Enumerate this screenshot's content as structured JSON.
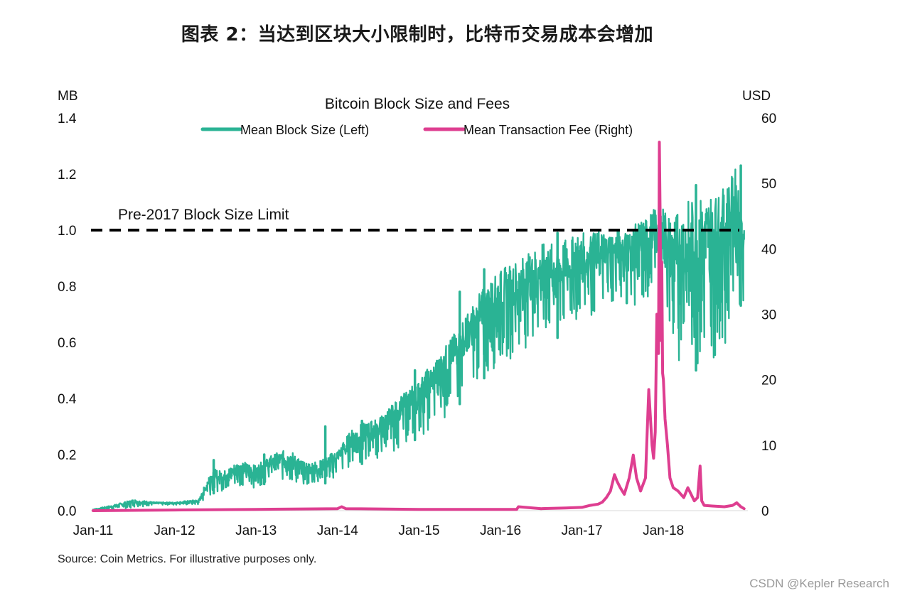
{
  "page": {
    "title": "图表 2：当达到区块大小限制时，比特币交易成本会增加",
    "source": "Source: Coin Metrics. For illustrative purposes only.",
    "watermark": "CSDN @Kepler Research"
  },
  "colors": {
    "block_size": "#2ab394",
    "fee": "#de3e90",
    "limit_line": "#000000"
  },
  "chart_data": {
    "type": "line",
    "title": "Bitcoin Block Size and Fees",
    "left_axis": {
      "unit_label": "MB",
      "range": [
        0.0,
        1.4
      ],
      "ticks": [
        "0.0",
        "0.2",
        "0.4",
        "0.6",
        "0.8",
        "1.0",
        "1.2",
        "1.4"
      ],
      "tick_values": [
        0.0,
        0.2,
        0.4,
        0.6,
        0.8,
        1.0,
        1.2,
        1.4
      ]
    },
    "right_axis": {
      "unit_label": "USD",
      "range": [
        0,
        60
      ],
      "ticks": [
        "0",
        "10",
        "20",
        "30",
        "40",
        "50",
        "60"
      ],
      "tick_values": [
        0,
        10,
        20,
        30,
        40,
        50,
        60
      ]
    },
    "x_axis": {
      "range": [
        2011.0,
        2019.0
      ],
      "ticks": [
        "Jan-11",
        "Jan-12",
        "Jan-13",
        "Jan-14",
        "Jan-15",
        "Jan-16",
        "Jan-17",
        "Jan-18"
      ],
      "tick_values": [
        2011,
        2012,
        2013,
        2014,
        2015,
        2016,
        2017,
        2018
      ]
    },
    "legend": {
      "position": "top-center",
      "entries": [
        "Mean Block Size (Left)",
        "Mean Transaction Fee (Right)"
      ]
    },
    "reference_line": {
      "label": "Pre-2017 Block Size Limit",
      "value": 1.0,
      "axis": "left"
    },
    "series": [
      {
        "name": "Mean Block Size (Left)",
        "axis": "left",
        "style": "band",
        "x": [
          2011.0,
          2011.25,
          2011.5,
          2011.75,
          2012.0,
          2012.3,
          2012.45,
          2012.6,
          2012.8,
          2013.0,
          2013.2,
          2013.4,
          2013.6,
          2013.8,
          2014.0,
          2014.2,
          2014.5,
          2014.75,
          2015.0,
          2015.25,
          2015.5,
          2015.75,
          2016.0,
          2016.25,
          2016.5,
          2016.75,
          2017.0,
          2017.25,
          2017.5,
          2017.65,
          2017.8,
          2017.9,
          2018.0,
          2018.1,
          2018.25,
          2018.5,
          2018.75,
          2018.9,
          2018.99
        ],
        "low": [
          0.0,
          0.005,
          0.01,
          0.02,
          0.02,
          0.02,
          0.06,
          0.07,
          0.09,
          0.08,
          0.11,
          0.1,
          0.08,
          0.09,
          0.12,
          0.16,
          0.18,
          0.22,
          0.26,
          0.3,
          0.38,
          0.46,
          0.52,
          0.56,
          0.6,
          0.62,
          0.66,
          0.7,
          0.75,
          0.72,
          0.7,
          0.82,
          0.86,
          0.48,
          0.5,
          0.5,
          0.58,
          0.72,
          0.74
        ],
        "high": [
          0.005,
          0.02,
          0.04,
          0.03,
          0.03,
          0.04,
          0.15,
          0.14,
          0.18,
          0.16,
          0.2,
          0.22,
          0.17,
          0.18,
          0.22,
          0.3,
          0.33,
          0.4,
          0.47,
          0.56,
          0.66,
          0.78,
          0.86,
          0.9,
          0.95,
          0.96,
          0.99,
          1.0,
          1.0,
          1.02,
          1.05,
          1.08,
          1.08,
          1.05,
          1.1,
          1.12,
          1.15,
          1.23,
          1.0
        ],
        "spikes": [
          {
            "x": 2012.48,
            "value": 0.18
          },
          {
            "x": 2013.1,
            "value": 0.2
          },
          {
            "x": 2013.85,
            "value": 0.3
          },
          {
            "x": 2014.3,
            "value": 0.32
          },
          {
            "x": 2014.95,
            "value": 0.5
          },
          {
            "x": 2015.5,
            "value": 0.78
          },
          {
            "x": 2015.8,
            "value": 0.86
          },
          {
            "x": 2016.7,
            "value": 0.99
          },
          {
            "x": 2017.55,
            "value": 0.98
          },
          {
            "x": 2018.4,
            "value": 1.16
          },
          {
            "x": 2018.95,
            "value": 1.23
          }
        ]
      },
      {
        "name": "Mean Transaction Fee (Right)",
        "axis": "right",
        "style": "line",
        "x": [
          2011.0,
          2012.0,
          2013.0,
          2014.0,
          2014.05,
          2014.1,
          2015.0,
          2016.0,
          2016.2,
          2016.22,
          2016.5,
          2016.8,
          2017.0,
          2017.1,
          2017.2,
          2017.25,
          2017.3,
          2017.35,
          2017.4,
          2017.43,
          2017.47,
          2017.52,
          2017.58,
          2017.63,
          2017.67,
          2017.72,
          2017.78,
          2017.82,
          2017.86,
          2017.88,
          2017.9,
          2017.92,
          2017.94,
          2017.95,
          2017.96,
          2017.97,
          2017.98,
          2017.99,
          2018.0,
          2018.02,
          2018.05,
          2018.08,
          2018.12,
          2018.18,
          2018.25,
          2018.3,
          2018.38,
          2018.42,
          2018.45,
          2018.47,
          2018.5,
          2018.6,
          2018.75,
          2018.85,
          2018.9,
          2018.95,
          2018.99
        ],
        "values": [
          0.0,
          0.1,
          0.2,
          0.3,
          0.6,
          0.3,
          0.2,
          0.2,
          0.2,
          0.6,
          0.3,
          0.4,
          0.5,
          0.8,
          1.0,
          1.3,
          2.0,
          3.0,
          5.5,
          4.5,
          3.5,
          2.5,
          5.0,
          8.5,
          5.0,
          3.0,
          5.0,
          18.5,
          10.0,
          8.0,
          12.0,
          30.0,
          24.0,
          56.3,
          45.0,
          26.0,
          38.0,
          21.0,
          20.0,
          14.0,
          10.0,
          5.0,
          3.5,
          3.0,
          2.0,
          3.5,
          1.5,
          2.0,
          6.8,
          1.5,
          0.8,
          0.7,
          0.6,
          0.8,
          1.2,
          0.6,
          0.3
        ]
      }
    ]
  }
}
